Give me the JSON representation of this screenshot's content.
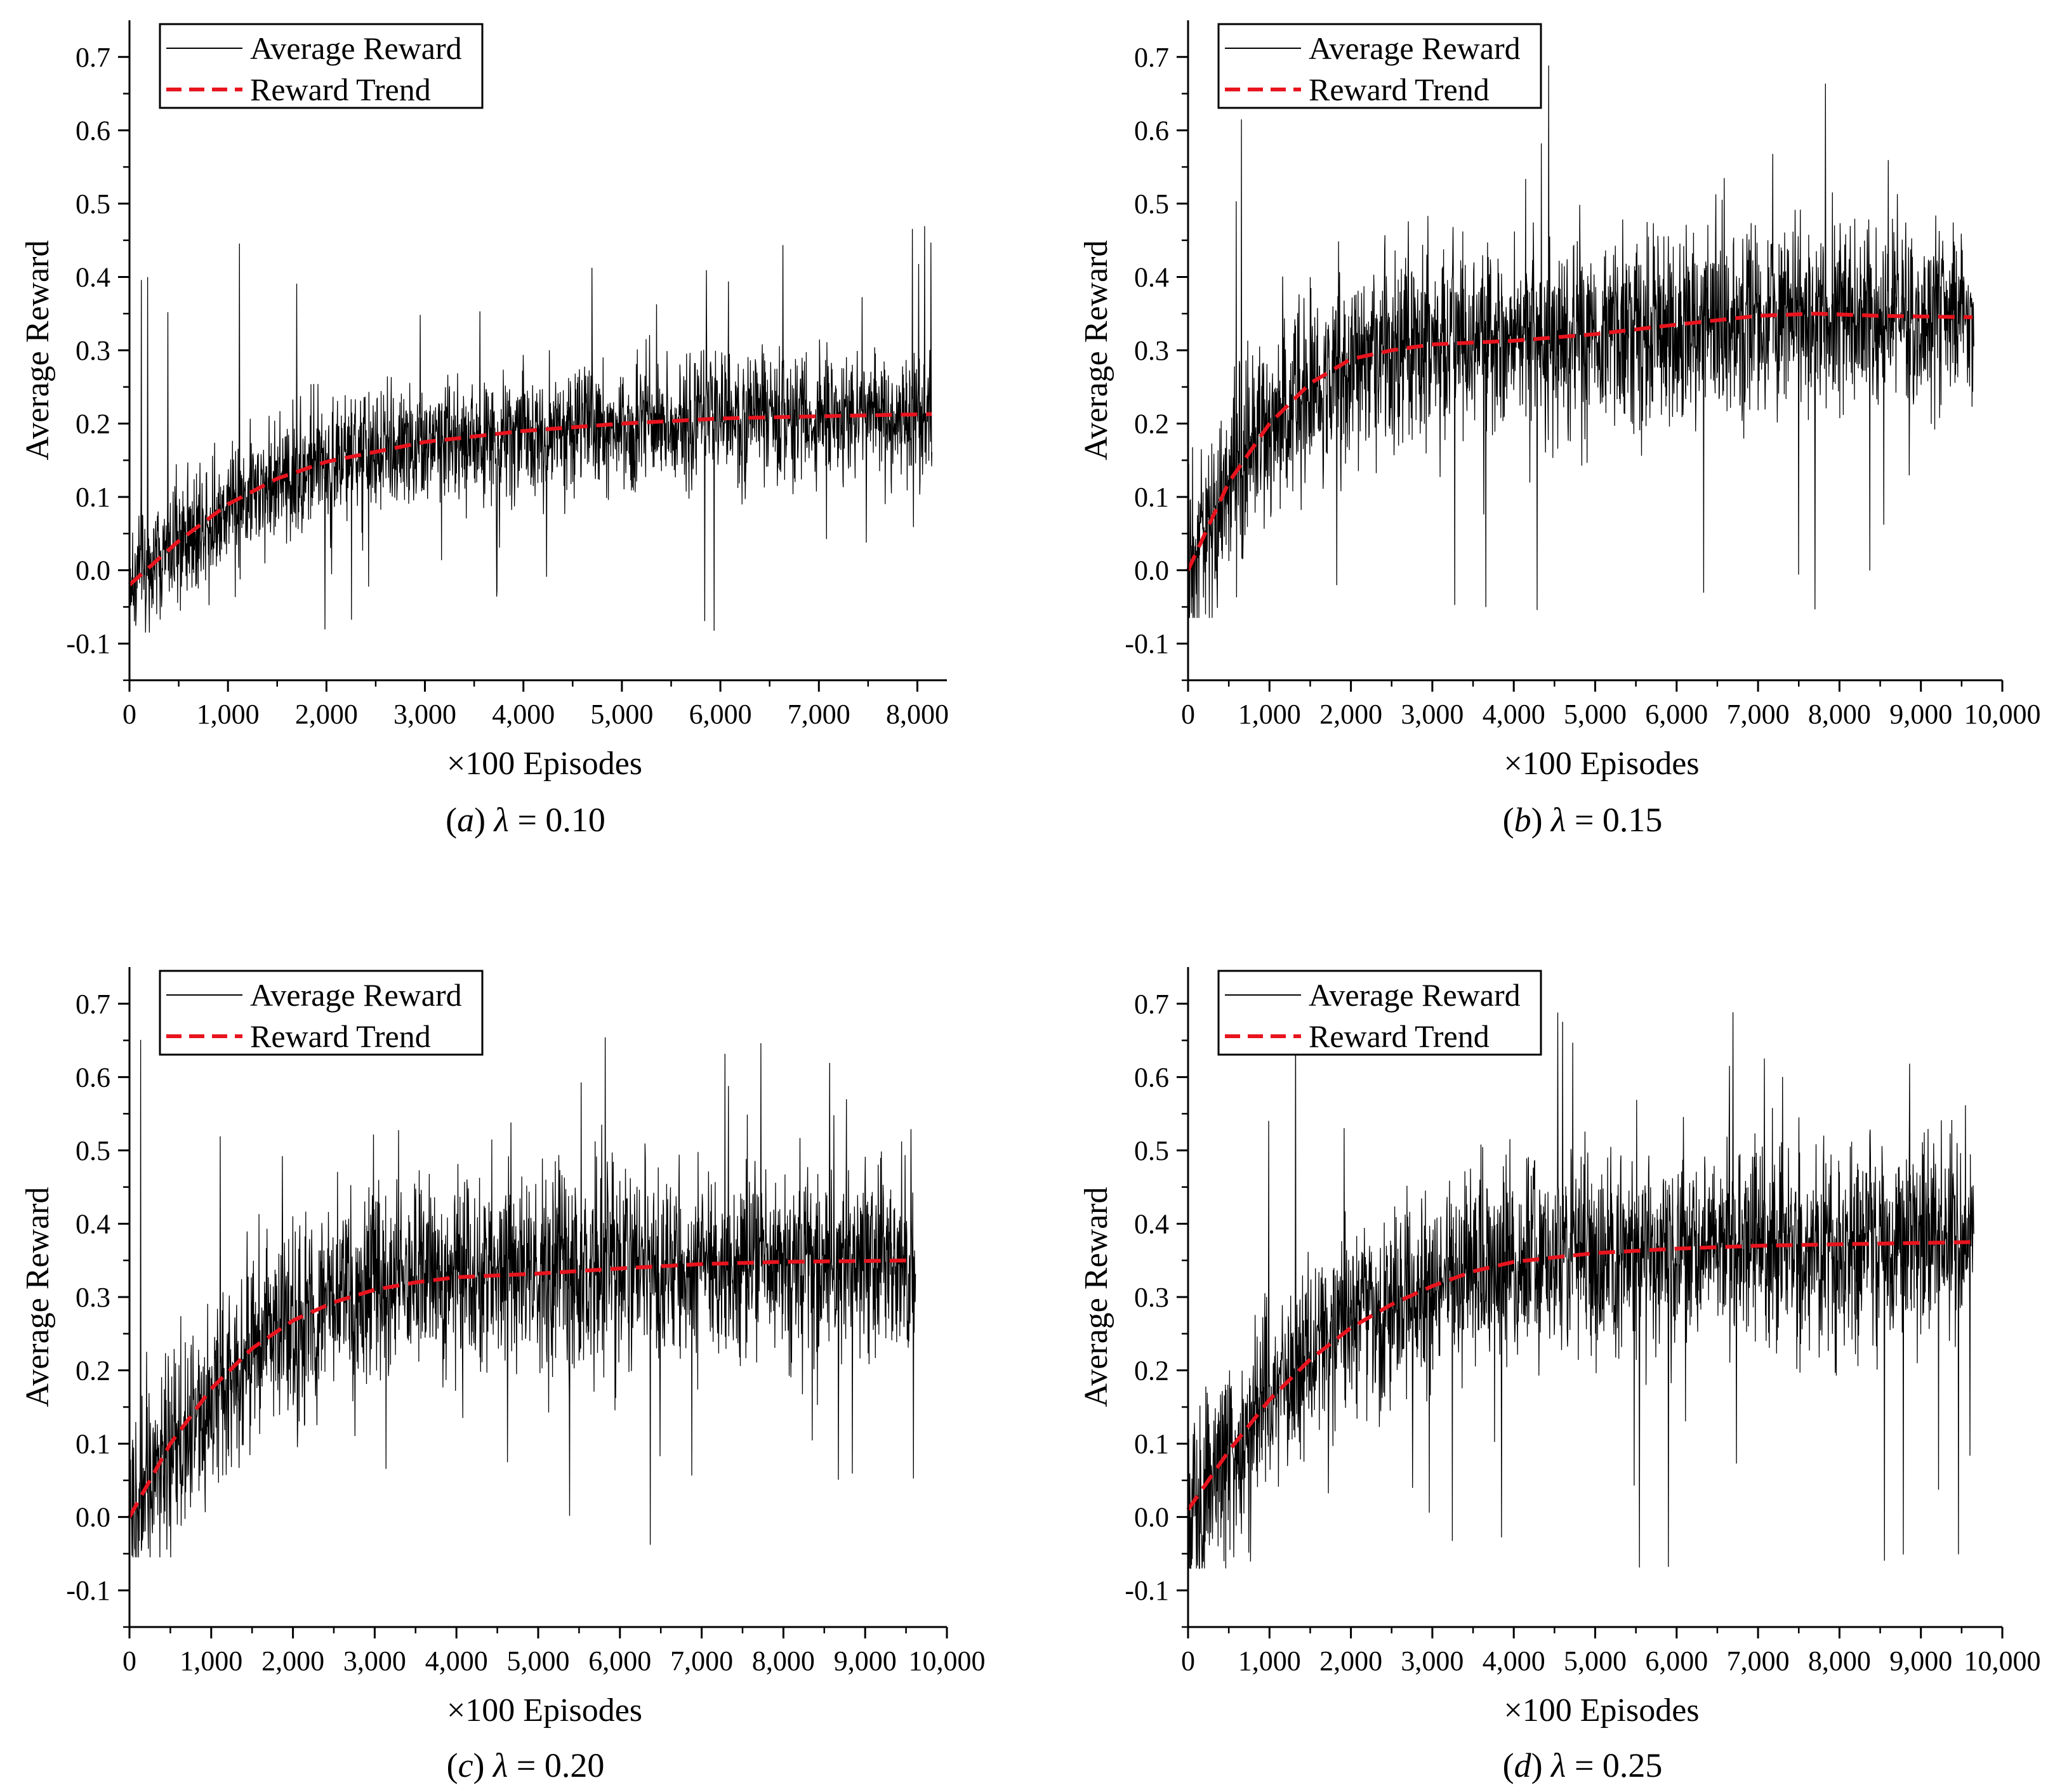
{
  "figure": {
    "panels": [
      {
        "id": "a",
        "caption": {
          "letter": "a",
          "lambda_symbol": "λ",
          "value": "= 0.10"
        },
        "legend": {
          "line_label": "Average Reward",
          "trend_label": "Reward Trend"
        },
        "chart_data": {
          "type": "line",
          "xlabel": "×100 Episodes",
          "ylabel": "Average Reward",
          "xlim": [
            0,
            8300
          ],
          "ylim": [
            -0.15,
            0.75
          ],
          "xticks": [
            0,
            1000,
            2000,
            3000,
            4000,
            5000,
            6000,
            7000,
            8000
          ],
          "xtick_labels": [
            "0",
            "1,000",
            "2,000",
            "3,000",
            "4,000",
            "5,000",
            "6,000",
            "7,000",
            "8,000"
          ],
          "yticks": [
            -0.1,
            0.0,
            0.1,
            0.2,
            0.3,
            0.4,
            0.5,
            0.6,
            0.7
          ],
          "ytick_labels": [
            "-0.1",
            "0.0",
            "0.1",
            "0.2",
            "0.3",
            "0.4",
            "0.5",
            "0.6",
            "0.7"
          ],
          "series": [
            {
              "name": "Average Reward",
              "style": "thin-black-noisy",
              "x_end": 8150,
              "mean_start": -0.02,
              "mean_end": 0.215,
              "noise_band": 0.06,
              "spike_max": 0.485,
              "spike_min": -0.085
            },
            {
              "name": "Reward Trend",
              "style": "red-dashed",
              "x": [
                0,
                500,
                1000,
                1500,
                2000,
                3000,
                4000,
                5000,
                6000,
                7000,
                8150
              ],
              "y": [
                -0.02,
                0.04,
                0.09,
                0.125,
                0.148,
                0.175,
                0.19,
                0.2,
                0.207,
                0.21,
                0.213
              ]
            }
          ]
        }
      },
      {
        "id": "b",
        "caption": {
          "letter": "b",
          "lambda_symbol": "λ",
          "value": "= 0.15"
        },
        "legend": {
          "line_label": "Average Reward",
          "trend_label": "Reward Trend"
        },
        "chart_data": {
          "type": "line",
          "xlabel": "×100 Episodes",
          "ylabel": "Average Reward",
          "xlim": [
            0,
            10000
          ],
          "ylim": [
            -0.15,
            0.75
          ],
          "xticks": [
            0,
            1000,
            2000,
            3000,
            4000,
            5000,
            6000,
            7000,
            8000,
            9000,
            10000
          ],
          "xtick_labels": [
            "0",
            "1,000",
            "2,000",
            "3,000",
            "4,000",
            "5,000",
            "6,000",
            "7,000",
            "8,000",
            "9,000",
            "10,000"
          ],
          "yticks": [
            -0.1,
            0.0,
            0.1,
            0.2,
            0.3,
            0.4,
            0.5,
            0.6,
            0.7
          ],
          "ytick_labels": [
            "-0.1",
            "0.0",
            "0.1",
            "0.2",
            "0.3",
            "0.4",
            "0.5",
            "0.6",
            "0.7"
          ],
          "series": [
            {
              "name": "Average Reward",
              "style": "thin-black-noisy",
              "x_end": 9650,
              "mean_start": 0.0,
              "mean_end": 0.345,
              "noise_band": 0.09,
              "spike_max": 0.69,
              "spike_min": -0.065
            },
            {
              "name": "Reward Trend",
              "style": "red-dashed",
              "x": [
                0,
                500,
                1000,
                1500,
                2000,
                2500,
                3000,
                4000,
                5000,
                6000,
                7000,
                7700,
                8500,
                9650
              ],
              "y": [
                0.0,
                0.12,
                0.2,
                0.255,
                0.288,
                0.3,
                0.308,
                0.313,
                0.322,
                0.335,
                0.347,
                0.35,
                0.347,
                0.345
              ]
            }
          ]
        }
      },
      {
        "id": "c",
        "caption": {
          "letter": "c",
          "lambda_symbol": "λ",
          "value": "= 0.20"
        },
        "legend": {
          "line_label": "Average Reward",
          "trend_label": "Reward Trend"
        },
        "chart_data": {
          "type": "line",
          "xlabel": "×100 Episodes",
          "ylabel": "Average Reward",
          "xlim": [
            0,
            10000
          ],
          "ylim": [
            -0.15,
            0.75
          ],
          "xticks": [
            0,
            1000,
            2000,
            3000,
            4000,
            5000,
            6000,
            7000,
            8000,
            9000,
            10000
          ],
          "xtick_labels": [
            "0",
            "1,000",
            "2,000",
            "3,000",
            "4,000",
            "5,000",
            "6,000",
            "7,000",
            "8,000",
            "9,000",
            "10,000"
          ],
          "yticks": [
            -0.1,
            0.0,
            0.1,
            0.2,
            0.3,
            0.4,
            0.5,
            0.6,
            0.7
          ],
          "ytick_labels": [
            "-0.1",
            "0.0",
            "0.1",
            "0.2",
            "0.3",
            "0.4",
            "0.5",
            "0.6",
            "0.7"
          ],
          "series": [
            {
              "name": "Average Reward",
              "style": "thin-black-noisy",
              "x_end": 9620,
              "mean_start": 0.0,
              "mean_end": 0.35,
              "noise_band": 0.09,
              "spike_max": 0.665,
              "spike_min": -0.055
            },
            {
              "name": "Reward Trend",
              "style": "red-dashed",
              "x": [
                0,
                500,
                1000,
                1500,
                2000,
                2500,
                3000,
                3500,
                4000,
                5000,
                6000,
                7000,
                8000,
                9620
              ],
              "y": [
                0.0,
                0.1,
                0.175,
                0.23,
                0.268,
                0.293,
                0.31,
                0.32,
                0.327,
                0.332,
                0.339,
                0.345,
                0.348,
                0.35
              ]
            }
          ]
        }
      },
      {
        "id": "d",
        "caption": {
          "letter": "d",
          "lambda_symbol": "λ",
          "value": "= 0.25"
        },
        "legend": {
          "line_label": "Average Reward",
          "trend_label": "Reward Trend"
        },
        "chart_data": {
          "type": "line",
          "xlabel": "×100 Episodes",
          "ylabel": "Average Reward",
          "xlim": [
            0,
            10000
          ],
          "ylim": [
            -0.15,
            0.75
          ],
          "xticks": [
            0,
            1000,
            2000,
            3000,
            4000,
            5000,
            6000,
            7000,
            8000,
            9000,
            10000
          ],
          "xtick_labels": [
            "0",
            "1,000",
            "2,000",
            "3,000",
            "4,000",
            "5,000",
            "6,000",
            "7,000",
            "8,000",
            "9,000",
            "10,000"
          ],
          "yticks": [
            -0.1,
            0.0,
            0.1,
            0.2,
            0.3,
            0.4,
            0.5,
            0.6,
            0.7
          ],
          "ytick_labels": [
            "-0.1",
            "0.0",
            "0.1",
            "0.2",
            "0.3",
            "0.4",
            "0.5",
            "0.6",
            "0.7"
          ],
          "series": [
            {
              "name": "Average Reward",
              "style": "thin-black-noisy",
              "x_end": 9650,
              "mean_start": 0.01,
              "mean_end": 0.375,
              "noise_band": 0.09,
              "spike_max": 0.71,
              "spike_min": -0.07
            },
            {
              "name": "Reward Trend",
              "style": "red-dashed",
              "x": [
                0,
                500,
                1000,
                1500,
                2000,
                2500,
                3000,
                3500,
                4000,
                5000,
                6000,
                7000,
                8000,
                9650
              ],
              "y": [
                0.01,
                0.09,
                0.16,
                0.215,
                0.258,
                0.29,
                0.315,
                0.335,
                0.348,
                0.36,
                0.366,
                0.37,
                0.372,
                0.375
              ]
            }
          ]
        }
      }
    ]
  }
}
